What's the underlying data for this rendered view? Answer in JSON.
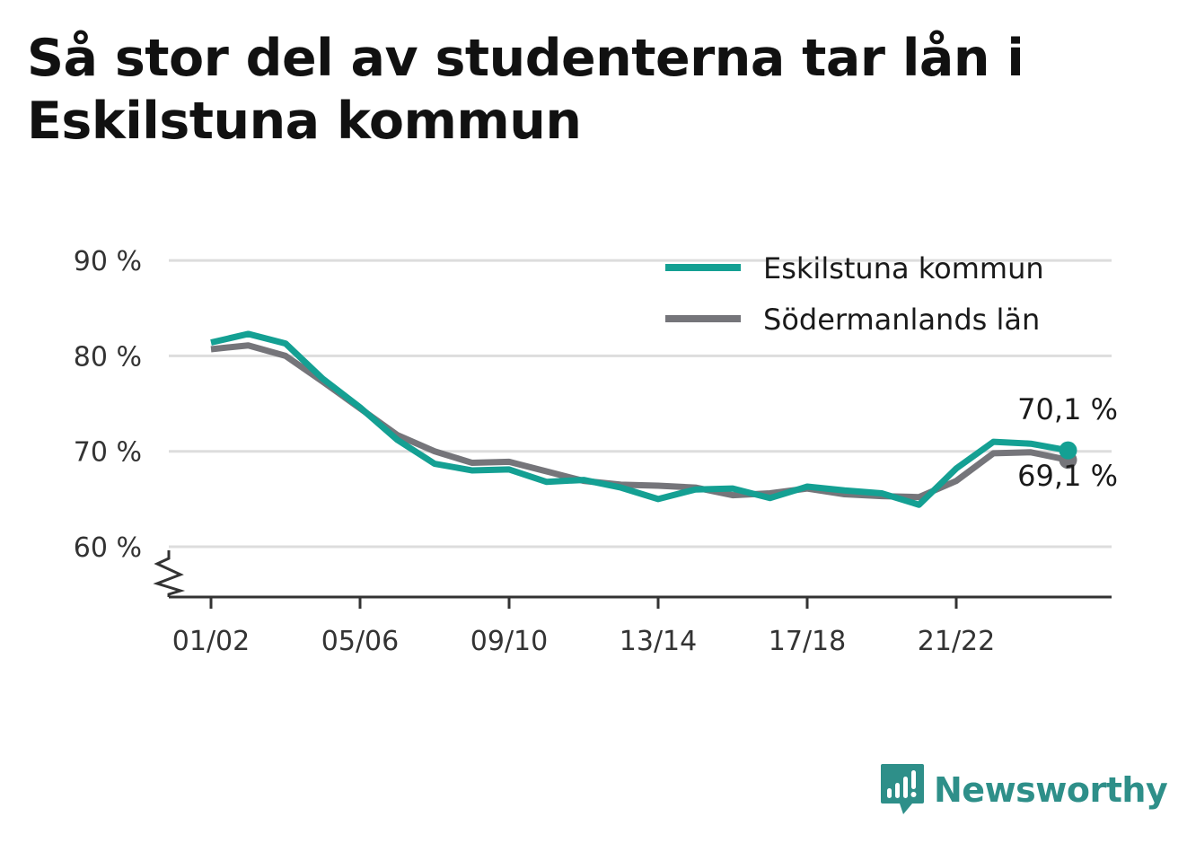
{
  "title": "Så stor del av studenterna tar lån i Eskilstuna kommun",
  "brand": {
    "name": "Newsworthy",
    "icon": "bar-chart-logo-icon",
    "color": "#2e8f89"
  },
  "chart_data": {
    "type": "line",
    "title": "Så stor del av studenterna tar lån i Eskilstuna kommun",
    "xlabel": "",
    "ylabel": "",
    "x": [
      "01/02",
      "02/03",
      "03/04",
      "04/05",
      "05/06",
      "06/07",
      "07/08",
      "08/09",
      "09/10",
      "10/11",
      "11/12",
      "12/13",
      "13/14",
      "14/15",
      "15/16",
      "16/17",
      "17/18",
      "18/19",
      "19/20",
      "20/21",
      "21/22",
      "22/23",
      "23/24",
      "24/25"
    ],
    "x_tick_labels": [
      "01/02",
      "05/06",
      "09/10",
      "13/14",
      "17/18",
      "21/22"
    ],
    "y_tick_labels": [
      "60 %",
      "70 %",
      "80 %",
      "90 %"
    ],
    "y_ticks": [
      60,
      70,
      80,
      90
    ],
    "ylim": [
      55,
      90
    ],
    "y_axis_break": true,
    "grid": true,
    "legend": "top-right",
    "series": [
      {
        "name": "Eskilstuna kommun",
        "color": "#14a093",
        "values": [
          81.4,
          82.3,
          81.3,
          77.6,
          74.6,
          71.2,
          68.7,
          68.0,
          68.1,
          66.8,
          67.0,
          66.2,
          65.0,
          66.0,
          66.1,
          65.1,
          66.3,
          65.9,
          65.6,
          64.4,
          68.2,
          71.0,
          70.8,
          70.1
        ],
        "end_label": "70,1 %"
      },
      {
        "name": "Södermanlands län",
        "color": "#75757a",
        "values": [
          80.7,
          81.1,
          80.0,
          77.3,
          74.5,
          71.7,
          70.0,
          68.8,
          68.9,
          67.9,
          66.9,
          66.5,
          66.4,
          66.2,
          65.4,
          65.6,
          66.1,
          65.5,
          65.3,
          65.2,
          66.9,
          69.8,
          69.9,
          69.1
        ],
        "end_label": "69,1 %"
      }
    ]
  }
}
